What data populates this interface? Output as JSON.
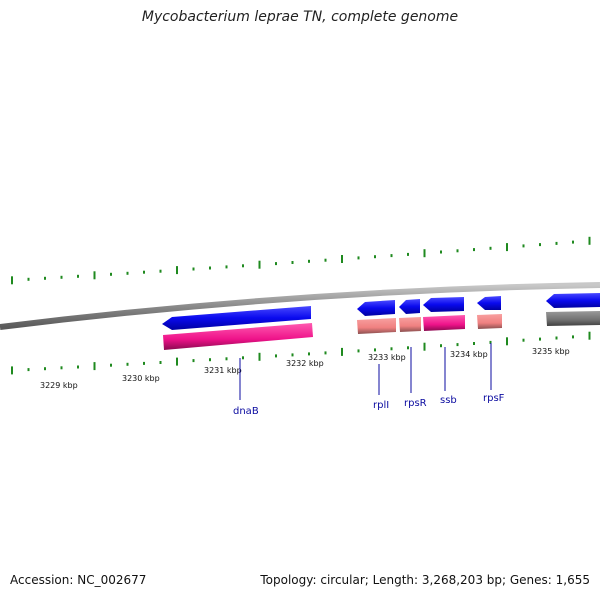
{
  "header": {
    "title": "Mycobacterium leprae TN, complete genome"
  },
  "footer": {
    "accession": "Accession: NC_002677",
    "summary": "Topology: circular; Length: 3,268,203 bp; Genes: 1,655"
  },
  "map": {
    "scale_labels": [
      "3229 kbp",
      "3230 kbp",
      "3231 kbp",
      "3232 kbp",
      "3233 kbp",
      "3234 kbp",
      "3235 kbp"
    ],
    "gene_labels": [
      "dnaB",
      "rplI",
      "rpsR",
      "ssb",
      "rpsF"
    ],
    "colors": {
      "backbone": "#8a8a8a",
      "ticks": "#1f8a1f",
      "cds": "#0a0aee",
      "gene_pink": "#ee1289",
      "gene_salmon": "#f08080",
      "gene_gray": "#707070",
      "label": "#0b0ba0"
    }
  }
}
